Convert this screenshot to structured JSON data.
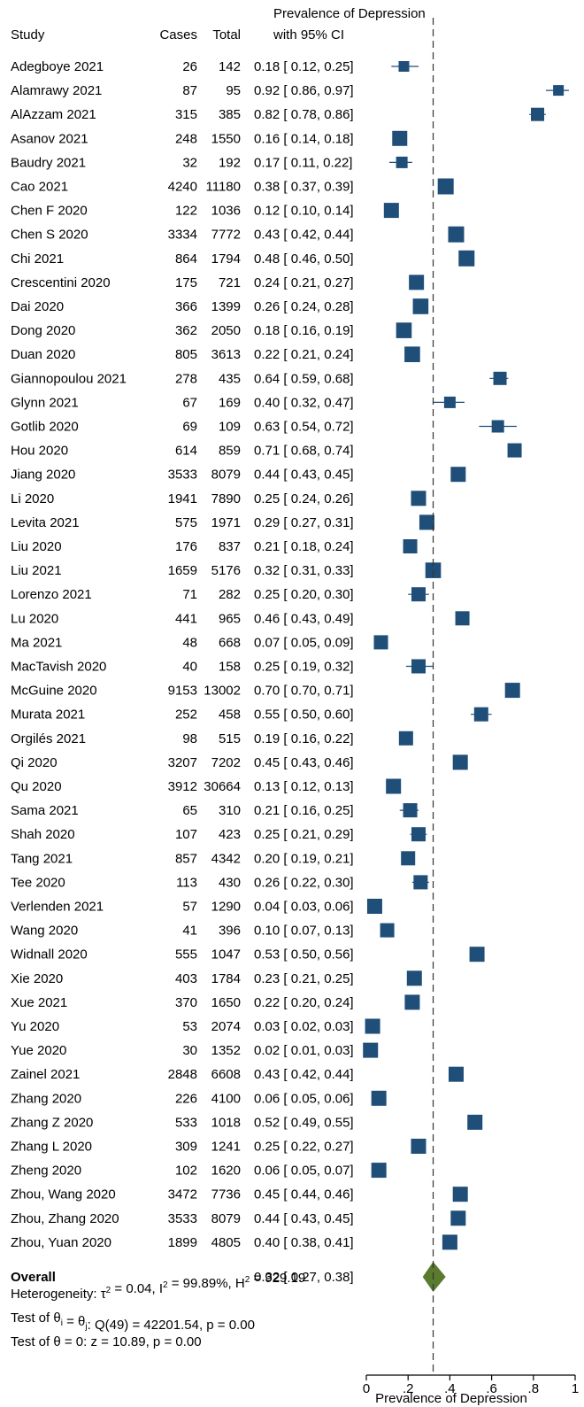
{
  "chart_data": {
    "type": "forest",
    "headers": {
      "study": "Study",
      "cases": "Cases",
      "total": "Total",
      "estimate_line1": "Prevalence of Depression",
      "estimate_line2": "with 95% CI"
    },
    "xlabel": "Prevalence of Depression",
    "xlim": [
      0,
      1
    ],
    "x_ticks": [
      {
        "value": 0,
        "label": "0"
      },
      {
        "value": 0.2,
        "label": ".2"
      },
      {
        "value": 0.4,
        "label": ".4"
      },
      {
        "value": 0.6,
        "label": ".6"
      },
      {
        "value": 0.8,
        "label": ".8"
      },
      {
        "value": 1,
        "label": "1"
      }
    ],
    "studies": [
      {
        "study": "Adegboye 2021",
        "cases": "26",
        "total": "142",
        "ci_text": "0.18 [ 0.12,  0.25]",
        "est": 0.18,
        "lo": 0.12,
        "hi": 0.25,
        "weight": 0.6
      },
      {
        "study": "Alamrawy 2021",
        "cases": "87",
        "total": "95",
        "ci_text": "0.92 [ 0.86,  0.97]",
        "est": 0.92,
        "lo": 0.86,
        "hi": 0.97,
        "weight": 0.6
      },
      {
        "study": "AlAzzam 2021",
        "cases": "315",
        "total": "385",
        "ci_text": "0.82 [ 0.78,  0.86]",
        "est": 0.82,
        "lo": 0.78,
        "hi": 0.86,
        "weight": 0.75
      },
      {
        "study": "Asanov 2021",
        "cases": "248",
        "total": "1550",
        "ci_text": "0.16 [ 0.14,  0.18]",
        "est": 0.16,
        "lo": 0.14,
        "hi": 0.18,
        "weight": 0.85
      },
      {
        "study": "Baudry 2021",
        "cases": "32",
        "total": "192",
        "ci_text": "0.17 [ 0.11,  0.22]",
        "est": 0.17,
        "lo": 0.11,
        "hi": 0.22,
        "weight": 0.65
      },
      {
        "study": "Cao 2021",
        "cases": "4240",
        "total": "11180",
        "ci_text": "0.38 [ 0.37,  0.39]",
        "est": 0.38,
        "lo": 0.37,
        "hi": 0.39,
        "weight": 0.9
      },
      {
        "study": "Chen F 2020",
        "cases": "122",
        "total": "1036",
        "ci_text": "0.12 [ 0.10,  0.14]",
        "est": 0.12,
        "lo": 0.1,
        "hi": 0.14,
        "weight": 0.85
      },
      {
        "study": "Chen S 2020",
        "cases": "3334",
        "total": "7772",
        "ci_text": "0.43 [ 0.42,  0.44]",
        "est": 0.43,
        "lo": 0.42,
        "hi": 0.44,
        "weight": 0.9
      },
      {
        "study": "Chi 2021",
        "cases": "864",
        "total": "1794",
        "ci_text": "0.48 [ 0.46,  0.50]",
        "est": 0.48,
        "lo": 0.46,
        "hi": 0.5,
        "weight": 0.9
      },
      {
        "study": "Crescentini 2020",
        "cases": "175",
        "total": "721",
        "ci_text": "0.24 [ 0.21,  0.27]",
        "est": 0.24,
        "lo": 0.21,
        "hi": 0.27,
        "weight": 0.85
      },
      {
        "study": "Dai 2020",
        "cases": "366",
        "total": "1399",
        "ci_text": "0.26 [ 0.24,  0.28]",
        "est": 0.26,
        "lo": 0.24,
        "hi": 0.28,
        "weight": 0.88
      },
      {
        "study": "Dong 2020",
        "cases": "362",
        "total": "2050",
        "ci_text": "0.18 [ 0.16,  0.19]",
        "est": 0.18,
        "lo": 0.16,
        "hi": 0.19,
        "weight": 0.88
      },
      {
        "study": "Duan 2020",
        "cases": "805",
        "total": "3613",
        "ci_text": "0.22 [ 0.21,  0.24]",
        "est": 0.22,
        "lo": 0.21,
        "hi": 0.24,
        "weight": 0.88
      },
      {
        "study": "Giannopoulou 2021",
        "cases": "278",
        "total": "435",
        "ci_text": "0.64 [ 0.59,  0.68]",
        "est": 0.64,
        "lo": 0.59,
        "hi": 0.68,
        "weight": 0.75
      },
      {
        "study": "Glynn 2021",
        "cases": "67",
        "total": "169",
        "ci_text": "0.40 [ 0.32,  0.47]",
        "est": 0.4,
        "lo": 0.32,
        "hi": 0.47,
        "weight": 0.65
      },
      {
        "study": "Gotlib 2020",
        "cases": "69",
        "total": "109",
        "ci_text": "0.63 [ 0.54,  0.72]",
        "est": 0.63,
        "lo": 0.54,
        "hi": 0.72,
        "weight": 0.7
      },
      {
        "study": "Hou 2020",
        "cases": "614",
        "total": "859",
        "ci_text": "0.71 [ 0.68,  0.74]",
        "est": 0.71,
        "lo": 0.68,
        "hi": 0.74,
        "weight": 0.8
      },
      {
        "study": "Jiang 2020",
        "cases": "3533",
        "total": "8079",
        "ci_text": "0.44 [ 0.43,  0.45]",
        "est": 0.44,
        "lo": 0.43,
        "hi": 0.45,
        "weight": 0.85
      },
      {
        "study": "Li 2020",
        "cases": "1941",
        "total": "7890",
        "ci_text": "0.25 [ 0.24,  0.26]",
        "est": 0.25,
        "lo": 0.24,
        "hi": 0.26,
        "weight": 0.85
      },
      {
        "study": "Levita 2021",
        "cases": "575",
        "total": "1971",
        "ci_text": "0.29 [ 0.27,  0.31]",
        "est": 0.29,
        "lo": 0.27,
        "hi": 0.31,
        "weight": 0.85
      },
      {
        "study": "Liu 2020",
        "cases": "176",
        "total": "837",
        "ci_text": "0.21 [ 0.18,  0.24]",
        "est": 0.21,
        "lo": 0.18,
        "hi": 0.24,
        "weight": 0.8
      },
      {
        "study": "Liu 2021",
        "cases": "1659",
        "total": "5176",
        "ci_text": "0.32 [ 0.31,  0.33]",
        "est": 0.32,
        "lo": 0.31,
        "hi": 0.33,
        "weight": 0.88
      },
      {
        "study": "Lorenzo 2021",
        "cases": "71",
        "total": "282",
        "ci_text": "0.25 [ 0.20,  0.30]",
        "est": 0.25,
        "lo": 0.2,
        "hi": 0.3,
        "weight": 0.8
      },
      {
        "study": "Lu 2020",
        "cases": "441",
        "total": "965",
        "ci_text": "0.46 [ 0.43,  0.49]",
        "est": 0.46,
        "lo": 0.43,
        "hi": 0.49,
        "weight": 0.8
      },
      {
        "study": "Ma 2021",
        "cases": "48",
        "total": "668",
        "ci_text": "0.07 [ 0.05,  0.09]",
        "est": 0.07,
        "lo": 0.05,
        "hi": 0.09,
        "weight": 0.8
      },
      {
        "study": "MacTavish 2020",
        "cases": "40",
        "total": "158",
        "ci_text": "0.25 [ 0.19,  0.32]",
        "est": 0.25,
        "lo": 0.19,
        "hi": 0.32,
        "weight": 0.8
      },
      {
        "study": "McGuine 2020",
        "cases": "9153",
        "total": "13002",
        "ci_text": "0.70 [ 0.70,  0.71]",
        "est": 0.7,
        "lo": 0.7,
        "hi": 0.71,
        "weight": 0.85
      },
      {
        "study": "Murata 2021",
        "cases": "252",
        "total": "458",
        "ci_text": "0.55 [ 0.50,  0.60]",
        "est": 0.55,
        "lo": 0.5,
        "hi": 0.6,
        "weight": 0.8
      },
      {
        "study": "Orgilés 2021",
        "cases": "98",
        "total": "515",
        "ci_text": "0.19 [ 0.16,  0.22]",
        "est": 0.19,
        "lo": 0.16,
        "hi": 0.22,
        "weight": 0.8
      },
      {
        "study": "Qi 2020",
        "cases": "3207",
        "total": "7202",
        "ci_text": "0.45 [ 0.43,  0.46]",
        "est": 0.45,
        "lo": 0.43,
        "hi": 0.46,
        "weight": 0.85
      },
      {
        "study": "Qu 2020",
        "cases": "3912",
        "total": "30664",
        "ci_text": "0.13 [ 0.12,  0.13]",
        "est": 0.13,
        "lo": 0.12,
        "hi": 0.13,
        "weight": 0.85
      },
      {
        "study": "Sama 2021",
        "cases": "65",
        "total": "310",
        "ci_text": "0.21 [ 0.16,  0.25]",
        "est": 0.21,
        "lo": 0.16,
        "hi": 0.25,
        "weight": 0.8
      },
      {
        "study": "Shah 2020",
        "cases": "107",
        "total": "423",
        "ci_text": "0.25 [ 0.21,  0.29]",
        "est": 0.25,
        "lo": 0.21,
        "hi": 0.29,
        "weight": 0.8
      },
      {
        "study": "Tang 2021",
        "cases": "857",
        "total": "4342",
        "ci_text": "0.20 [ 0.19,  0.21]",
        "est": 0.2,
        "lo": 0.19,
        "hi": 0.21,
        "weight": 0.8
      },
      {
        "study": "Tee 2020",
        "cases": "113",
        "total": "430",
        "ci_text": "0.26 [ 0.22,  0.30]",
        "est": 0.26,
        "lo": 0.22,
        "hi": 0.3,
        "weight": 0.8
      },
      {
        "study": "Verlenden 2021",
        "cases": "57",
        "total": "1290",
        "ci_text": "0.04 [ 0.03,  0.06]",
        "est": 0.04,
        "lo": 0.03,
        "hi": 0.06,
        "weight": 0.85
      },
      {
        "study": "Wang 2020",
        "cases": "41",
        "total": "396",
        "ci_text": "0.10 [ 0.07,  0.13]",
        "est": 0.1,
        "lo": 0.07,
        "hi": 0.13,
        "weight": 0.8
      },
      {
        "study": "Widnall 2020",
        "cases": "555",
        "total": "1047",
        "ci_text": "0.53 [ 0.50,  0.56]",
        "est": 0.53,
        "lo": 0.5,
        "hi": 0.56,
        "weight": 0.85
      },
      {
        "study": "Xie 2020",
        "cases": "403",
        "total": "1784",
        "ci_text": "0.23 [ 0.21,  0.25]",
        "est": 0.23,
        "lo": 0.21,
        "hi": 0.25,
        "weight": 0.85
      },
      {
        "study": "Xue 2021",
        "cases": "370",
        "total": "1650",
        "ci_text": "0.22 [ 0.20,  0.24]",
        "est": 0.22,
        "lo": 0.2,
        "hi": 0.24,
        "weight": 0.85
      },
      {
        "study": "Yu 2020",
        "cases": "53",
        "total": "2074",
        "ci_text": "0.03 [ 0.02,  0.03]",
        "est": 0.03,
        "lo": 0.02,
        "hi": 0.03,
        "weight": 0.85
      },
      {
        "study": "Yue 2020",
        "cases": "30",
        "total": "1352",
        "ci_text": "0.02 [ 0.01,  0.03]",
        "est": 0.02,
        "lo": 0.01,
        "hi": 0.03,
        "weight": 0.85
      },
      {
        "study": "Zainel 2021",
        "cases": "2848",
        "total": "6608",
        "ci_text": "0.43 [ 0.42,  0.44]",
        "est": 0.43,
        "lo": 0.42,
        "hi": 0.44,
        "weight": 0.85
      },
      {
        "study": "Zhang 2020",
        "cases": "226",
        "total": "4100",
        "ci_text": "0.06 [ 0.05,  0.06]",
        "est": 0.06,
        "lo": 0.05,
        "hi": 0.06,
        "weight": 0.85
      },
      {
        "study": "Zhang Z 2020",
        "cases": "533",
        "total": "1018",
        "ci_text": "0.52 [ 0.49,  0.55]",
        "est": 0.52,
        "lo": 0.49,
        "hi": 0.55,
        "weight": 0.85
      },
      {
        "study": "Zhang L 2020",
        "cases": "309",
        "total": "1241",
        "ci_text": "0.25 [ 0.22,  0.27]",
        "est": 0.25,
        "lo": 0.22,
        "hi": 0.27,
        "weight": 0.85
      },
      {
        "study": "Zheng 2020",
        "cases": "102",
        "total": "1620",
        "ci_text": "0.06 [ 0.05,  0.07]",
        "est": 0.06,
        "lo": 0.05,
        "hi": 0.07,
        "weight": 0.85
      },
      {
        "study": "Zhou, Wang 2020",
        "cases": "3472",
        "total": "7736",
        "ci_text": "0.45 [ 0.44,  0.46]",
        "est": 0.45,
        "lo": 0.44,
        "hi": 0.46,
        "weight": 0.85
      },
      {
        "study": "Zhou, Zhang 2020",
        "cases": "3533",
        "total": "8079",
        "ci_text": "0.44 [ 0.43,  0.45]",
        "est": 0.44,
        "lo": 0.43,
        "hi": 0.45,
        "weight": 0.85
      },
      {
        "study": "Zhou, Yuan 2020",
        "cases": "1899",
        "total": "4805",
        "ci_text": "0.40 [ 0.38,  0.41]",
        "est": 0.4,
        "lo": 0.38,
        "hi": 0.41,
        "weight": 0.85
      }
    ],
    "overall": {
      "label": "Overall",
      "ci_text": "0.32 [ 0.27,  0.38]",
      "est": 0.32,
      "lo": 0.27,
      "hi": 0.38
    },
    "stats": [
      {
        "parts": [
          {
            "t": "Heterogeneity: τ"
          },
          {
            "t": "2",
            "sup": true
          },
          {
            "t": " = 0.04, I"
          },
          {
            "t": "2",
            "sup": true
          },
          {
            "t": " = 99.89%, H"
          },
          {
            "t": "2",
            "sup": true
          },
          {
            "t": " = 929.19"
          }
        ]
      },
      {
        "parts": [
          {
            "t": "Test of θ"
          },
          {
            "t": "i",
            "sub": true
          },
          {
            "t": " = θ"
          },
          {
            "t": "j",
            "sub": true
          },
          {
            "t": ": Q(49) = 42201.54, p = 0.00"
          }
        ]
      },
      {
        "parts": [
          {
            "t": "Test of θ = 0: z = 10.89, p = 0.00"
          }
        ]
      }
    ],
    "colors": {
      "marker": "#1f4e79",
      "diamond": "#5a7a2e",
      "line": "#000000"
    }
  }
}
